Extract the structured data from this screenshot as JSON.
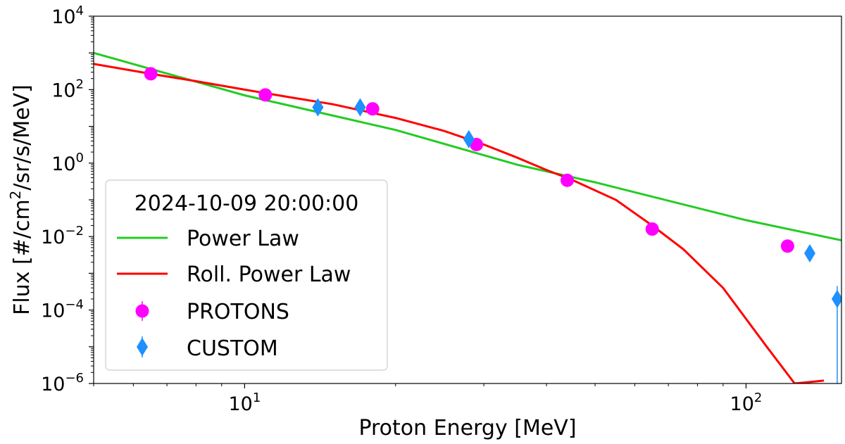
{
  "chart_data": {
    "type": "scatter",
    "xlabel": "Proton Energy [MeV]",
    "ylabel_main": "Flux [#/cm",
    "ylabel_sup": "2",
    "ylabel_rest": "/sr/s/MeV]",
    "x_scale": "log",
    "y_scale": "log",
    "xlim": [
      5.0,
      155.0
    ],
    "ylim": [
      1e-06,
      10000.0
    ],
    "x_ticks": [
      {
        "value": 10,
        "base": "10",
        "exp": "1"
      },
      {
        "value": 100,
        "base": "10",
        "exp": "2"
      }
    ],
    "y_ticks": [
      {
        "value": 10000.0,
        "base": "10",
        "exp": "4"
      },
      {
        "value": 100.0,
        "base": "10",
        "exp": "2"
      },
      {
        "value": 1,
        "base": "10",
        "exp": "0"
      },
      {
        "value": 0.01,
        "base": "10",
        "exp": "−2"
      },
      {
        "value": 0.0001,
        "base": "10",
        "exp": "−4"
      },
      {
        "value": 1e-06,
        "base": "10",
        "exp": "−6"
      }
    ],
    "legend": {
      "title": "2024-10-09 20:00:00",
      "placement": "lower-left",
      "entries": [
        "Power Law",
        "Roll. Power Law",
        "PROTONS",
        "CUSTOM"
      ]
    },
    "series": [
      {
        "name": "Power Law",
        "kind": "line",
        "color": "#22cc22",
        "points": [
          [
            5.0,
            1000
          ],
          [
            10,
            70
          ],
          [
            20,
            8
          ],
          [
            35,
            0.9
          ],
          [
            50,
            0.3
          ],
          [
            100,
            0.028
          ],
          [
            155,
            0.0079
          ]
        ]
      },
      {
        "name": "Roll. Power Law",
        "kind": "line",
        "color": "#ff0000",
        "points": [
          [
            5.0,
            500
          ],
          [
            6.5,
            270
          ],
          [
            8,
            170
          ],
          [
            10,
            100
          ],
          [
            12.5,
            60
          ],
          [
            15,
            40
          ],
          [
            20,
            17
          ],
          [
            25,
            7.5
          ],
          [
            30,
            3.2
          ],
          [
            35,
            1.4
          ],
          [
            40,
            0.65
          ],
          [
            45,
            0.35
          ],
          [
            55,
            0.1
          ],
          [
            65,
            0.02
          ],
          [
            75,
            0.0045
          ],
          [
            90,
            0.0004
          ],
          [
            110,
            1e-05
          ],
          [
            125,
            1e-06
          ],
          [
            143,
            1.2e-06
          ]
        ]
      },
      {
        "name": "PROTONS",
        "kind": "scatter",
        "marker": "circle",
        "color": "#ff00ff",
        "points": [
          [
            6.5,
            270
          ],
          [
            11,
            72
          ],
          [
            18,
            30
          ],
          [
            29,
            3.2
          ],
          [
            44,
            0.34
          ],
          [
            65,
            0.016
          ],
          [
            121,
            0.0055
          ]
        ]
      },
      {
        "name": "CUSTOM",
        "kind": "scatter",
        "marker": "diamond",
        "color": "#1e90ff",
        "points": [
          [
            14,
            33
          ],
          [
            17,
            33
          ],
          [
            28,
            4.5
          ],
          [
            134,
            0.0035
          ],
          [
            152,
            0.0002
          ]
        ],
        "error_bars": [
          {
            "x": 152,
            "low": 1e-06,
            "high": 0.00045
          }
        ]
      }
    ]
  }
}
